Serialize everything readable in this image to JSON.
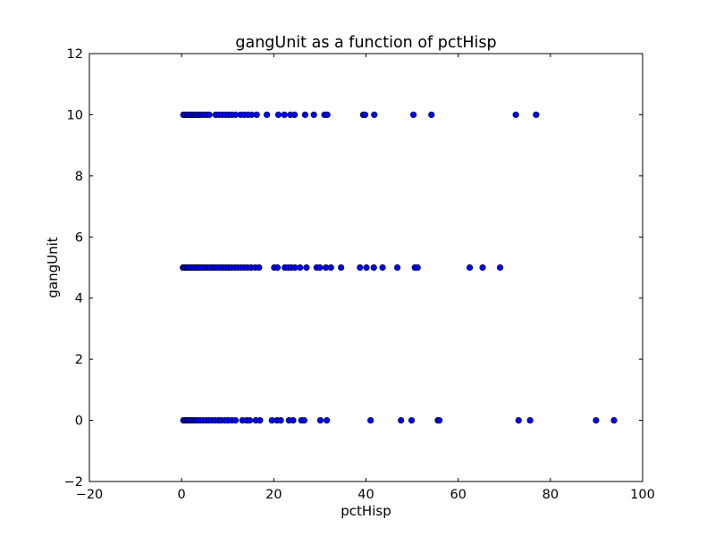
{
  "chart_data": {
    "type": "scatter",
    "title": "gangUnit as a function of pctHisp",
    "xlabel": "pctHisp",
    "ylabel": "gangUnit",
    "xlim": [
      -20,
      100
    ],
    "ylim": [
      -2,
      12
    ],
    "xticks": [
      "−20",
      "0",
      "20",
      "40",
      "60",
      "80",
      "100"
    ],
    "yticks": [
      "−2",
      "0",
      "2",
      "4",
      "6",
      "8",
      "10",
      "12"
    ],
    "xtick_values": [
      -20,
      0,
      20,
      40,
      60,
      80,
      100
    ],
    "ytick_values": [
      -2,
      0,
      2,
      4,
      6,
      8,
      10,
      12
    ],
    "grid": false,
    "marker_color": "#0000ff",
    "marker_edge": "#000000",
    "series": [
      {
        "values": [
          [
            0.4,
            10
          ],
          [
            0.7,
            10
          ],
          [
            1.0,
            10
          ],
          [
            1.3,
            10
          ],
          [
            1.8,
            10
          ],
          [
            2.2,
            10
          ],
          [
            2.6,
            10
          ],
          [
            3.0,
            10
          ],
          [
            3.4,
            10
          ],
          [
            3.9,
            10
          ],
          [
            4.3,
            10
          ],
          [
            4.8,
            10
          ],
          [
            5.4,
            10
          ],
          [
            6.0,
            10
          ],
          [
            7.4,
            10
          ],
          [
            8.1,
            10
          ],
          [
            8.8,
            10
          ],
          [
            9.5,
            10
          ],
          [
            10.2,
            10
          ],
          [
            10.9,
            10
          ],
          [
            11.7,
            10
          ],
          [
            12.8,
            10
          ],
          [
            13.6,
            10
          ],
          [
            14.4,
            10
          ],
          [
            15.2,
            10
          ],
          [
            16.3,
            10
          ],
          [
            18.5,
            10
          ],
          [
            21.0,
            10
          ],
          [
            22.3,
            10
          ],
          [
            23.6,
            10
          ],
          [
            24.5,
            10
          ],
          [
            26.8,
            10
          ],
          [
            28.7,
            10
          ],
          [
            31.0,
            10
          ],
          [
            31.6,
            10
          ],
          [
            39.4,
            10
          ],
          [
            39.8,
            10
          ],
          [
            41.8,
            10
          ],
          [
            50.3,
            10
          ],
          [
            54.2,
            10
          ],
          [
            72.5,
            10
          ],
          [
            76.9,
            10
          ],
          [
            0.3,
            5
          ],
          [
            0.6,
            5
          ],
          [
            0.9,
            5
          ],
          [
            1.2,
            5
          ],
          [
            1.5,
            5
          ],
          [
            1.9,
            5
          ],
          [
            2.3,
            5
          ],
          [
            2.7,
            5
          ],
          [
            3.1,
            5
          ],
          [
            3.5,
            5
          ],
          [
            3.9,
            5
          ],
          [
            4.4,
            5
          ],
          [
            4.9,
            5
          ],
          [
            5.5,
            5
          ],
          [
            6.1,
            5
          ],
          [
            6.7,
            5
          ],
          [
            7.2,
            5
          ],
          [
            7.8,
            5
          ],
          [
            8.4,
            5
          ],
          [
            9.0,
            5
          ],
          [
            9.6,
            5
          ],
          [
            10.2,
            5
          ],
          [
            10.8,
            5
          ],
          [
            11.5,
            5
          ],
          [
            12.2,
            5
          ],
          [
            12.9,
            5
          ],
          [
            13.6,
            5
          ],
          [
            14.3,
            5
          ],
          [
            15.1,
            5
          ],
          [
            16.0,
            5
          ],
          [
            16.8,
            5
          ],
          [
            20.1,
            5
          ],
          [
            20.8,
            5
          ],
          [
            22.4,
            5
          ],
          [
            23.1,
            5
          ],
          [
            23.8,
            5
          ],
          [
            24.6,
            5
          ],
          [
            25.7,
            5
          ],
          [
            27.1,
            5
          ],
          [
            29.3,
            5
          ],
          [
            30.0,
            5
          ],
          [
            31.3,
            5
          ],
          [
            32.4,
            5
          ],
          [
            34.6,
            5
          ],
          [
            38.7,
            5
          ],
          [
            40.1,
            5
          ],
          [
            41.7,
            5
          ],
          [
            43.6,
            5
          ],
          [
            46.8,
            5
          ],
          [
            50.6,
            5
          ],
          [
            51.2,
            5
          ],
          [
            62.5,
            5
          ],
          [
            65.3,
            5
          ],
          [
            69.1,
            5
          ],
          [
            0.4,
            0
          ],
          [
            0.8,
            0
          ],
          [
            1.2,
            0
          ],
          [
            1.6,
            0
          ],
          [
            2.0,
            0
          ],
          [
            2.4,
            0
          ],
          [
            2.9,
            0
          ],
          [
            3.4,
            0
          ],
          [
            4.0,
            0
          ],
          [
            4.6,
            0
          ],
          [
            5.3,
            0
          ],
          [
            5.9,
            0
          ],
          [
            6.6,
            0
          ],
          [
            7.3,
            0
          ],
          [
            8.0,
            0
          ],
          [
            8.6,
            0
          ],
          [
            9.4,
            0
          ],
          [
            10.1,
            0
          ],
          [
            10.9,
            0
          ],
          [
            11.7,
            0
          ],
          [
            13.2,
            0
          ],
          [
            14.1,
            0
          ],
          [
            14.8,
            0
          ],
          [
            16.1,
            0
          ],
          [
            17.0,
            0
          ],
          [
            19.6,
            0
          ],
          [
            20.7,
            0
          ],
          [
            21.5,
            0
          ],
          [
            23.3,
            0
          ],
          [
            24.2,
            0
          ],
          [
            26.0,
            0
          ],
          [
            26.6,
            0
          ],
          [
            30.1,
            0
          ],
          [
            31.5,
            0
          ],
          [
            41.0,
            0
          ],
          [
            47.6,
            0
          ],
          [
            49.9,
            0
          ],
          [
            55.6,
            0
          ],
          [
            55.9,
            0
          ],
          [
            73.1,
            0
          ],
          [
            75.6,
            0
          ],
          [
            89.9,
            0
          ],
          [
            93.8,
            0
          ]
        ]
      }
    ]
  }
}
